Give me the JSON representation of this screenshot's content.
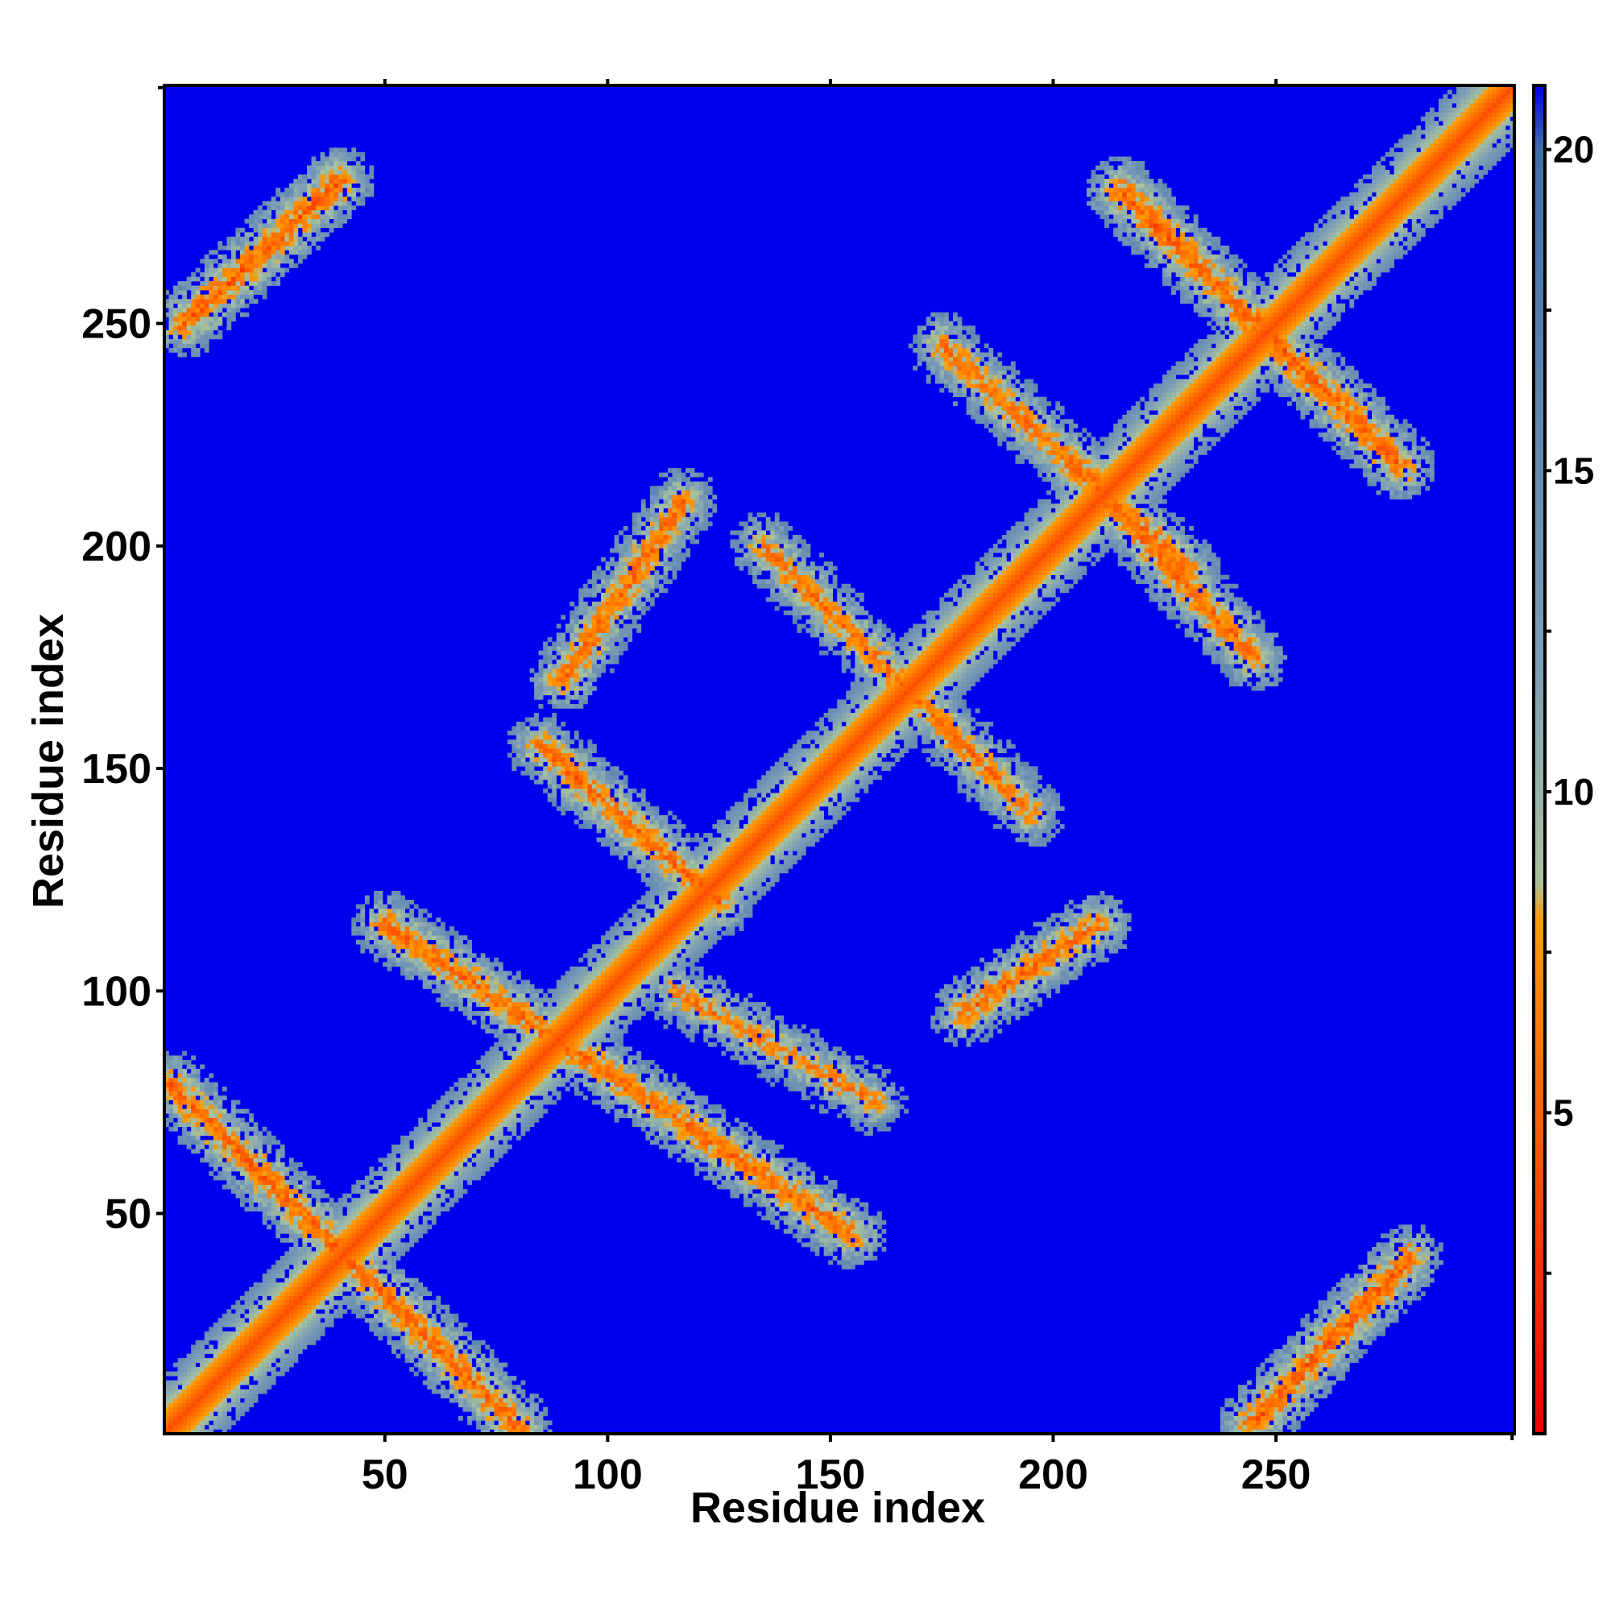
{
  "chart_data": {
    "type": "heatmap",
    "title": "",
    "xlabel": "Residue index",
    "ylabel": "Residue index",
    "n_residues": 303,
    "xlim": [
      1,
      303
    ],
    "ylim": [
      1,
      303
    ],
    "x_ticks": [
      50,
      100,
      150,
      200,
      250
    ],
    "y_ticks": [
      50,
      100,
      150,
      200,
      250
    ],
    "x_tick_labels": [
      "50",
      "100",
      "150",
      "200",
      "250"
    ],
    "y_tick_labels": [
      "50",
      "100",
      "150",
      "200",
      "250"
    ],
    "colorbar": {
      "range": [
        0,
        21
      ],
      "ticks": [
        5,
        10,
        15,
        20
      ],
      "tick_labels": [
        "5",
        "10",
        "15",
        "20"
      ],
      "colors": [
        {
          "value": 0,
          "color": "#ee0000"
        },
        {
          "value": 4.5,
          "color": "#ff5a00"
        },
        {
          "value": 8,
          "color": "#ff9a00"
        },
        {
          "value": 8.6,
          "color": "#a9c39c"
        },
        {
          "value": 12,
          "color": "#7d9eb6"
        },
        {
          "value": 20,
          "color": "#3f6fa8"
        },
        {
          "value": 21,
          "color": "#0000ee"
        }
      ]
    },
    "background_value": 21,
    "background_color": "#0000ee",
    "grid": false,
    "description_bands": [
      {
        "kind": "main-diagonal",
        "from": [
          1,
          1
        ],
        "to": [
          303,
          303
        ],
        "min_value": 3.8
      },
      {
        "kind": "anti-diagonal",
        "from": [
          2,
          79
        ],
        "to": [
          80,
          2
        ],
        "min_value": 5.2
      },
      {
        "kind": "anti-diagonal",
        "from": [
          50,
          115
        ],
        "to": [
          155,
          45
        ],
        "min_value": 5.5
      },
      {
        "kind": "anti-diagonal",
        "from": [
          115,
          100
        ],
        "to": [
          160,
          75
        ],
        "min_value": 6.5
      },
      {
        "kind": "anti-diagonal",
        "from": [
          85,
          155
        ],
        "to": [
          125,
          120
        ],
        "min_value": 5.5
      },
      {
        "kind": "anti-diagonal",
        "from": [
          135,
          200
        ],
        "to": [
          195,
          140
        ],
        "min_value": 6.0
      },
      {
        "kind": "anti-diagonal",
        "from": [
          205,
          218
        ],
        "to": [
          245,
          175
        ],
        "min_value": 5.5
      },
      {
        "kind": "anti-diagonal",
        "from": [
          175,
          245
        ],
        "to": [
          230,
          195
        ],
        "min_value": 5.8
      },
      {
        "kind": "anti-diagonal",
        "from": [
          215,
          280
        ],
        "to": [
          278,
          218
        ],
        "min_value": 5.0
      },
      {
        "kind": "parallel",
        "from": [
          5,
          250
        ],
        "to": [
          40,
          282
        ],
        "min_value": 5.0
      },
      {
        "kind": "parallel",
        "from": [
          90,
          170
        ],
        "to": [
          117,
          210
        ],
        "min_value": 5.5
      },
      {
        "kind": "parallel",
        "from": [
          180,
          95
        ],
        "to": [
          210,
          115
        ],
        "min_value": 5.5
      },
      {
        "kind": "parallel",
        "from": [
          245,
          3
        ],
        "to": [
          280,
          40
        ],
        "min_value": 5.0
      }
    ]
  }
}
